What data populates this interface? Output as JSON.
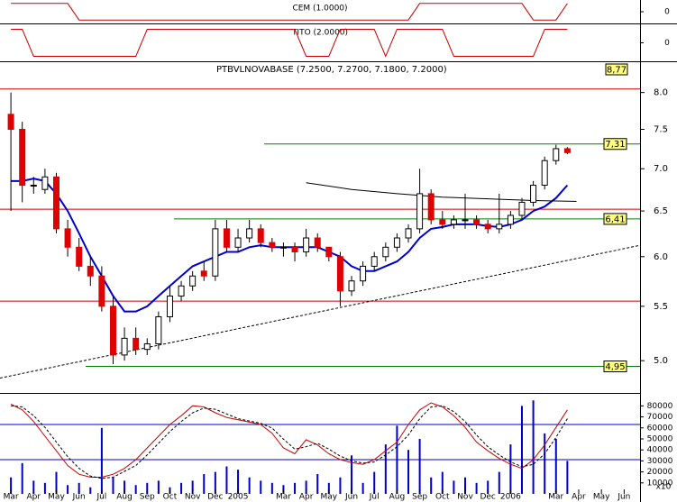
{
  "chart_data": {
    "type": "candlestick",
    "title": "PTBVLNOVABASE (7.2500, 7.2700, 7.1800, 7.2000)",
    "price_box": "8,77",
    "log_scale": true,
    "ylim": [
      4.77,
      8.45
    ],
    "yticks": [
      {
        "value": 8,
        "label": "8.0"
      },
      7.5,
      {
        "value": 7,
        "label": "7.0"
      },
      6.5,
      {
        "value": 6,
        "label": "6.0"
      },
      5.5,
      {
        "value": 5,
        "label": "5.0"
      }
    ],
    "xlim": [
      -0.48,
      27.7
    ],
    "xticks": [
      {
        "value": 0,
        "label": "Mar"
      },
      {
        "value": 1,
        "label": "Apr"
      },
      {
        "value": 2,
        "label": "May"
      },
      {
        "value": 3,
        "label": "Jun"
      },
      {
        "value": 4,
        "label": "Jul"
      },
      {
        "value": 5,
        "label": "Aug"
      },
      {
        "value": 6,
        "label": "Sep"
      },
      {
        "value": 7,
        "label": "Oct"
      },
      {
        "value": 8,
        "label": "Nov"
      },
      {
        "value": 9,
        "label": "Dec"
      },
      {
        "value": 10,
        "label": "2005"
      },
      {
        "value": 12,
        "label": "Mar"
      },
      {
        "value": 13,
        "label": "Apr"
      },
      {
        "value": 14,
        "label": "May"
      },
      {
        "value": 15,
        "label": "Jun"
      },
      {
        "value": 16,
        "label": "Jul"
      },
      {
        "value": 17,
        "label": "Aug"
      },
      {
        "value": 18,
        "label": "Sep"
      },
      {
        "value": 19,
        "label": "Oct"
      },
      {
        "value": 20,
        "label": "Nov"
      },
      {
        "value": 21,
        "label": "Dec"
      },
      {
        "value": 22,
        "label": "2006"
      },
      {
        "value": 24,
        "label": "Mar"
      },
      {
        "value": 25,
        "label": "Apr"
      },
      {
        "value": 26,
        "label": "May"
      },
      {
        "value": 27,
        "label": "Jun"
      }
    ],
    "x": [
      0,
      0.5,
      1,
      1.5,
      2,
      2.5,
      3,
      3.5,
      4,
      4.5,
      5,
      5.5,
      6,
      6.5,
      7,
      7.5,
      8,
      8.5,
      9,
      9.5,
      10,
      10.5,
      11,
      11.5,
      12,
      12.5,
      13,
      13.5,
      14,
      14.5,
      15,
      15.5,
      16,
      16.5,
      17,
      17.5,
      18,
      18.5,
      19,
      19.5,
      20,
      20.5,
      21,
      21.5,
      22,
      22.5,
      23,
      23.5,
      24,
      24.5
    ],
    "open": [
      7.7,
      7.5,
      6.8,
      6.75,
      6.9,
      6.3,
      6.1,
      5.9,
      5.8,
      5.5,
      5.05,
      5.2,
      5.1,
      5.15,
      5.4,
      5.6,
      5.7,
      5.85,
      5.8,
      6.3,
      6.1,
      6.2,
      6.3,
      6.15,
      6.1,
      6.1,
      6.05,
      6.2,
      6.1,
      6.0,
      5.65,
      5.75,
      5.9,
      6.0,
      6.1,
      6.2,
      6.3,
      6.7,
      6.4,
      6.35,
      6.4,
      6.4,
      6.35,
      6.3,
      6.35,
      6.45,
      6.6,
      6.8,
      7.1,
      7.25
    ],
    "high": [
      8.0,
      7.6,
      6.9,
      7.0,
      6.95,
      6.4,
      6.2,
      6.0,
      5.9,
      5.6,
      5.3,
      5.3,
      5.2,
      5.45,
      5.7,
      5.75,
      5.85,
      5.95,
      6.4,
      6.4,
      6.3,
      6.4,
      6.35,
      6.2,
      6.15,
      6.15,
      6.3,
      6.25,
      6.1,
      6.05,
      5.8,
      5.95,
      6.05,
      6.15,
      6.25,
      6.35,
      7.0,
      6.75,
      6.5,
      6.45,
      6.7,
      6.45,
      6.4,
      6.7,
      6.5,
      6.65,
      6.85,
      7.15,
      7.3,
      7.27
    ],
    "low": [
      6.5,
      6.6,
      6.7,
      6.7,
      6.25,
      6.0,
      5.85,
      5.7,
      5.45,
      4.97,
      5.0,
      5.05,
      5.05,
      5.1,
      5.35,
      5.55,
      5.65,
      5.75,
      5.75,
      6.05,
      6.05,
      6.15,
      6.1,
      6.05,
      6.0,
      5.95,
      6.0,
      6.05,
      5.95,
      5.5,
      5.6,
      5.7,
      5.85,
      5.95,
      6.05,
      6.15,
      6.25,
      6.35,
      6.3,
      6.3,
      6.3,
      6.3,
      6.25,
      6.25,
      6.3,
      6.4,
      6.55,
      6.75,
      7.05,
      7.18
    ],
    "close": [
      7.5,
      6.8,
      6.8,
      6.9,
      6.3,
      6.1,
      5.9,
      5.8,
      5.5,
      5.05,
      5.2,
      5.1,
      5.15,
      5.4,
      5.6,
      5.7,
      5.8,
      5.8,
      6.3,
      6.1,
      6.2,
      6.3,
      6.15,
      6.1,
      6.1,
      6.05,
      6.2,
      6.1,
      6.0,
      5.65,
      5.75,
      5.9,
      6.0,
      6.1,
      6.2,
      6.3,
      6.7,
      6.4,
      6.35,
      6.4,
      6.4,
      6.35,
      6.3,
      6.35,
      6.45,
      6.6,
      6.8,
      7.1,
      7.25,
      7.2
    ],
    "up_color": "#ffffff",
    "down_color": "#e00000",
    "overlays": [
      {
        "color": "#0000d0",
        "x": [
          0,
          0.5,
          1,
          1.5,
          2,
          2.5,
          3,
          3.5,
          4,
          4.5,
          5,
          5.5,
          6,
          6.5,
          7,
          7.5,
          8,
          8.5,
          9,
          9.5,
          10,
          10.5,
          11,
          11.5,
          12,
          12.5,
          13,
          13.5,
          14,
          14.5,
          15,
          15.5,
          16,
          16.5,
          17,
          17.5,
          18,
          18.5,
          19,
          19.5,
          20,
          20.5,
          21,
          21.5,
          22,
          22.5,
          23,
          23.5,
          24,
          24.5
        ],
        "values": [
          6.85,
          6.85,
          6.88,
          6.85,
          6.7,
          6.5,
          6.25,
          6.0,
          5.8,
          5.6,
          5.45,
          5.45,
          5.5,
          5.6,
          5.7,
          5.8,
          5.9,
          5.95,
          6.0,
          6.05,
          6.05,
          6.1,
          6.12,
          6.1,
          6.1,
          6.1,
          6.1,
          6.1,
          6.05,
          6.0,
          5.9,
          5.85,
          5.85,
          5.9,
          5.95,
          6.05,
          6.2,
          6.3,
          6.32,
          6.35,
          6.35,
          6.35,
          6.33,
          6.32,
          6.35,
          6.4,
          6.5,
          6.55,
          6.65,
          6.8
        ]
      },
      {
        "color": "#000000",
        "x": [
          13,
          15,
          17,
          19,
          21,
          23,
          24.9
        ],
        "values": [
          6.83,
          6.75,
          6.7,
          6.66,
          6.64,
          6.62,
          6.61
        ]
      }
    ],
    "hlines": [
      {
        "value": 8.05,
        "color": "#cc0000",
        "x_start": -0.48
      },
      {
        "value": 6.52,
        "color": "#cc0000",
        "x_start": -0.48
      },
      {
        "value": 5.55,
        "color": "#cc0000",
        "x_start": -0.48
      },
      {
        "value": 7.31,
        "label": "7,31",
        "color": "#008000",
        "x_start": 11.15
      },
      {
        "value": 6.41,
        "label": "6,41",
        "color": "#008000",
        "x_start": 7.18
      },
      {
        "value": 4.95,
        "label": "4,95",
        "color": "#008000",
        "x_start": 3.29
      }
    ],
    "trendline": {
      "x": [
        -0.48,
        27.7
      ],
      "values": [
        4.85,
        6.12
      ]
    },
    "indicators": [
      {
        "title": "CEM (1.0000)",
        "color": "#cc0000",
        "ylim": [
          -1.3,
          1.3
        ],
        "yticks": [
          0
        ],
        "values": [
          1,
          1,
          1,
          1,
          1,
          1,
          -1,
          -1,
          -1,
          -1,
          -1,
          -1,
          -1,
          -1,
          -1,
          -1,
          -1,
          -1,
          -1,
          -1,
          -1,
          -1,
          -1,
          -1,
          -1,
          -1,
          -1,
          -1,
          -1,
          -1,
          -1,
          -1,
          -1,
          -1,
          -1,
          -1,
          1,
          1,
          1,
          1,
          1,
          1,
          1,
          1,
          1,
          1,
          -1,
          -1,
          -1,
          1
        ]
      },
      {
        "title": "TITO (2.0000)",
        "color": "#cc0000",
        "ylim": [
          -1.3,
          1.3
        ],
        "yticks": [
          0
        ],
        "values": [
          1,
          1,
          -1,
          -1,
          -1,
          -1,
          -1,
          -1,
          -1,
          -1,
          -1,
          -1,
          1,
          1,
          1,
          1,
          1,
          1,
          1,
          1,
          1,
          1,
          1,
          1,
          1,
          1,
          -1,
          -1,
          -1,
          1,
          1,
          1,
          1,
          -1,
          1,
          1,
          1,
          1,
          1,
          -1,
          -1,
          -1,
          -1,
          -1,
          -1,
          -1,
          -1,
          1,
          1,
          1
        ]
      }
    ],
    "volume": {
      "color": "#0000cc",
      "ylim": [
        0,
        88500
      ],
      "yticks": [
        80000,
        70000,
        60000,
        50000,
        40000,
        30000,
        20000,
        10000
      ],
      "multiplier_label": "x10",
      "values": [
        15000,
        28000,
        12000,
        10000,
        20000,
        8000,
        10000,
        6000,
        60000,
        15000,
        12000,
        8000,
        10000,
        12000,
        6000,
        10000,
        12000,
        18000,
        20000,
        25000,
        22000,
        15000,
        12000,
        10000,
        8000,
        10000,
        12000,
        18000,
        10000,
        15000,
        35000,
        10000,
        20000,
        45000,
        62000,
        40000,
        50000,
        15000,
        20000,
        12000,
        15000,
        10000,
        12000,
        20000,
        45000,
        80000,
        85000,
        55000,
        50000,
        30000
      ],
      "y2lim": [
        -38.5,
        127.7
      ],
      "levels": [
        80,
        20
      ],
      "oscillator": {
        "color": "#cc0000",
        "values": [
          115,
          105,
          85,
          60,
          35,
          10,
          -5,
          -10,
          -10,
          -5,
          5,
          20,
          40,
          60,
          80,
          95,
          112,
          110,
          100,
          92,
          88,
          84,
          80,
          65,
          40,
          30,
          54,
          45,
          30,
          20,
          15,
          12,
          20,
          35,
          50,
          80,
          105,
          117,
          110,
          95,
          75,
          50,
          35,
          22,
          12,
          5,
          20,
          45,
          75,
          105
        ],
        "signal": [
          112,
          110,
          95,
          75,
          50,
          25,
          5,
          -8,
          -12,
          -10,
          0,
          10,
          28,
          48,
          68,
          85,
          100,
          108,
          106,
          98,
          90,
          86,
          82,
          74,
          55,
          38,
          42,
          48,
          38,
          26,
          18,
          14,
          16,
          28,
          42,
          62,
          90,
          110,
          112,
          102,
          85,
          62,
          42,
          28,
          16,
          8,
          12,
          30,
          58,
          90
        ]
      }
    }
  }
}
